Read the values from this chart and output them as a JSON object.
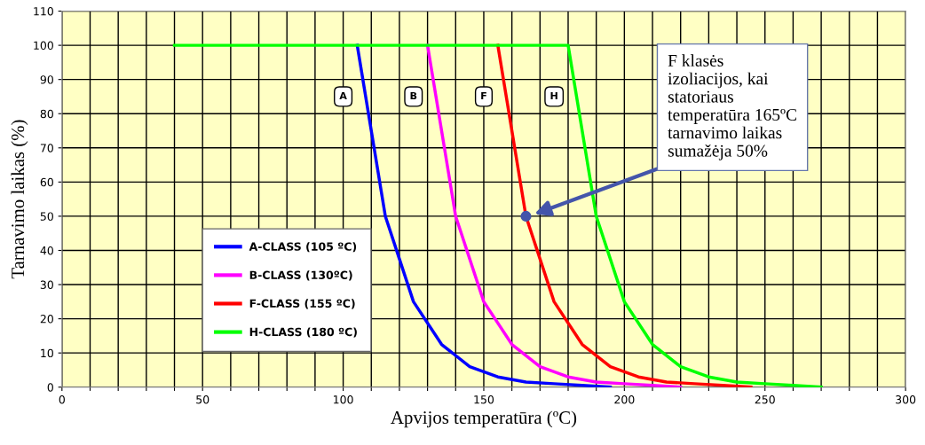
{
  "chart_data": {
    "type": "line",
    "xlabel": "Apvijos temperatūra (ºC)",
    "ylabel": "Tarnavimo laikas (%)",
    "xlim": [
      0,
      300
    ],
    "ylim": [
      0,
      110
    ],
    "xticks": [
      0,
      {
        "value": 10,
        "label": null
      },
      {
        "value": 20,
        "label": null
      },
      {
        "value": 30,
        "label": null
      },
      {
        "value": 40,
        "label": null
      },
      50,
      {
        "value": 60,
        "label": null
      },
      {
        "value": 70,
        "label": null
      },
      {
        "value": 80,
        "label": null
      },
      {
        "value": 90,
        "label": null
      },
      100,
      {
        "value": 110,
        "label": null
      },
      {
        "value": 120,
        "label": null
      },
      {
        "value": 130,
        "label": null
      },
      {
        "value": 140,
        "label": null
      },
      150,
      {
        "value": 160,
        "label": null
      },
      {
        "value": 170,
        "label": null
      },
      {
        "value": 180,
        "label": null
      },
      {
        "value": 190,
        "label": null
      },
      200,
      {
        "value": 210,
        "label": null
      },
      {
        "value": 220,
        "label": null
      },
      {
        "value": 230,
        "label": null
      },
      {
        "value": 240,
        "label": null
      },
      250,
      {
        "value": 260,
        "label": null
      },
      {
        "value": 270,
        "label": null
      },
      {
        "value": 280,
        "label": null
      },
      {
        "value": 290,
        "label": null
      },
      300
    ],
    "yticks": [
      0,
      10,
      20,
      30,
      40,
      50,
      60,
      70,
      80,
      90,
      100,
      110
    ],
    "grid": true,
    "legend": "bottom left",
    "marker": "none",
    "line_style": "solid",
    "series": [
      {
        "name": "A-CLASS (105 ºC)",
        "color": "#0000ff",
        "x": [
          105,
          115,
          125,
          135,
          145,
          155,
          165,
          175,
          185,
          195
        ],
        "values": [
          100,
          50,
          25,
          12.5,
          6,
          3,
          1.5,
          1,
          0.5,
          0
        ]
      },
      {
        "name": "B-CLASS (130ºC)",
        "color": "#ff00ff",
        "x": [
          130,
          140,
          150,
          160,
          170,
          180,
          190,
          200,
          210,
          220
        ],
        "values": [
          100,
          50,
          25,
          12.5,
          6,
          3,
          1.5,
          1,
          0.5,
          0
        ]
      },
      {
        "name": "F-CLASS (155 ºC)",
        "color": "#ff0000",
        "x": [
          155,
          165,
          175,
          185,
          195,
          205,
          215,
          225,
          235,
          245
        ],
        "values": [
          100,
          50,
          25,
          12.5,
          6,
          3,
          1.5,
          1,
          0.5,
          0
        ]
      },
      {
        "name": "H-CLASS (180 ºC)",
        "color": "#00ff00",
        "x": [
          40,
          180,
          190,
          200,
          210,
          220,
          230,
          240,
          250,
          260,
          270
        ],
        "values": [
          100,
          100,
          50,
          25,
          12.5,
          6,
          3,
          1.5,
          1,
          0.5,
          0
        ]
      },
      {
        "type": "scatter",
        "marker": "circle",
        "color": "#4455aa",
        "x": [
          165
        ],
        "values": [
          50
        ]
      }
    ],
    "annotations": [
      {
        "text": "A",
        "x": 100,
        "y": 85
      },
      {
        "text": "B",
        "x": 125,
        "y": 85
      },
      {
        "text": "F",
        "x": 150,
        "y": 85
      },
      {
        "text": "H",
        "x": 175,
        "y": 85
      },
      "F klasės\nizoliacijos, kai\nstatoriaus\ntemperatūra 165ºC\ntarnavimo laikas\nsumažėja 50%"
    ]
  }
}
